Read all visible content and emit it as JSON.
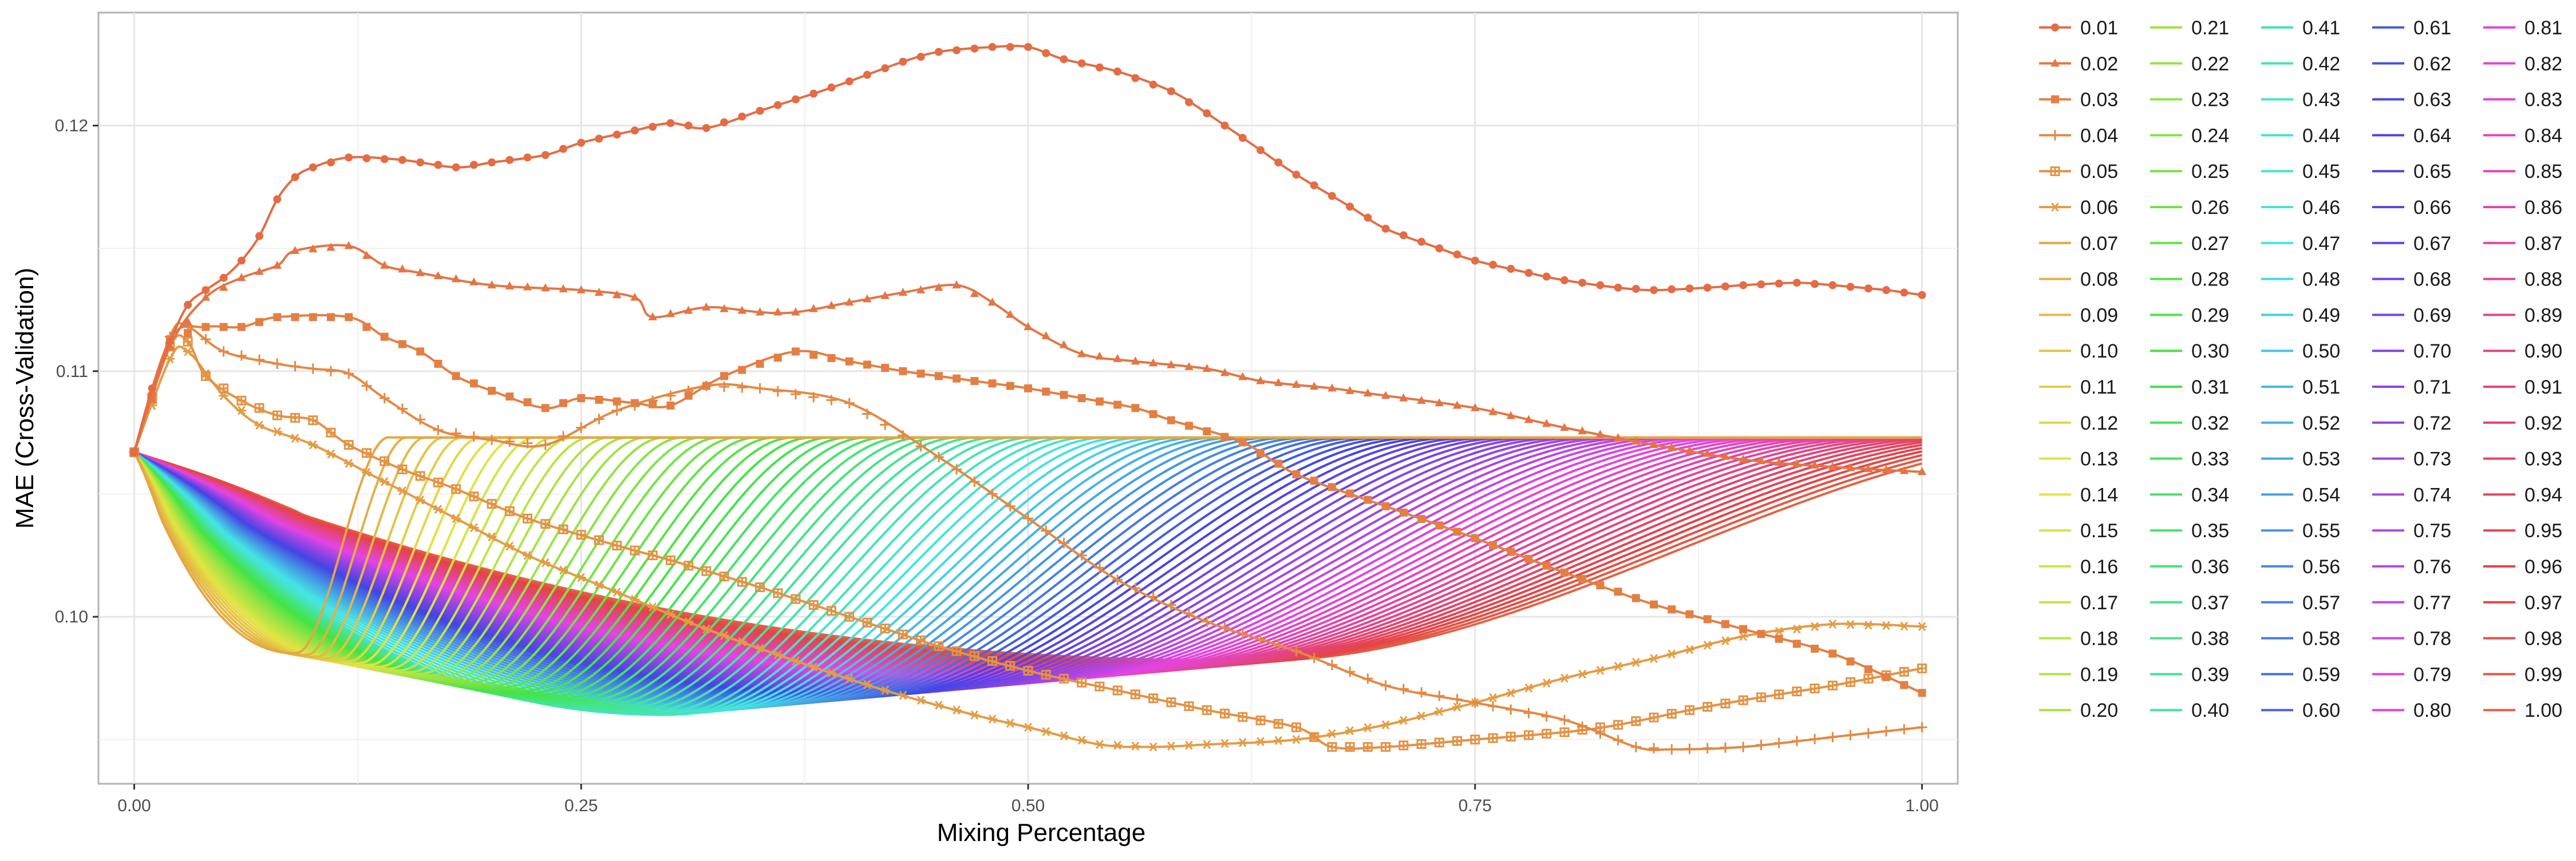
{
  "chart_data": {
    "type": "line",
    "title": "",
    "xlabel": "Mixing Percentage",
    "ylabel": "MAE (Cross-Validation)",
    "xlim": [
      -0.02,
      1.02
    ],
    "ylim": [
      0.0932,
      0.1246
    ],
    "x_ticks": [
      0.0,
      0.25,
      0.5,
      0.75,
      1.0
    ],
    "x_tick_labels": [
      "0.00",
      "0.25",
      "0.50",
      "0.75",
      "1.00"
    ],
    "y_ticks": [
      0.1,
      0.11,
      0.12
    ],
    "y_tick_labels": [
      "0.10",
      "0.11",
      "0.12"
    ],
    "grid": true,
    "legend": "right",
    "legend_entries": [
      "0.01",
      "0.02",
      "0.03",
      "0.04",
      "0.05",
      "0.06",
      "0.07",
      "0.08",
      "0.09",
      "0.10",
      "0.11",
      "0.12",
      "0.13",
      "0.14",
      "0.15",
      "0.16",
      "0.17",
      "0.18",
      "0.19",
      "0.20",
      "0.21",
      "0.22",
      "0.23",
      "0.24",
      "0.25",
      "0.26",
      "0.27",
      "0.28",
      "0.29",
      "0.30",
      "0.31",
      "0.32",
      "0.33",
      "0.34",
      "0.35",
      "0.36",
      "0.37",
      "0.38",
      "0.39",
      "0.40",
      "0.41",
      "0.42",
      "0.43",
      "0.44",
      "0.45",
      "0.46",
      "0.47",
      "0.48",
      "0.49",
      "0.50",
      "0.51",
      "0.52",
      "0.53",
      "0.54",
      "0.55",
      "0.56",
      "0.57",
      "0.58",
      "0.59",
      "0.60",
      "0.61",
      "0.62",
      "0.63",
      "0.64",
      "0.65",
      "0.66",
      "0.67",
      "0.68",
      "0.69",
      "0.70",
      "0.71",
      "0.72",
      "0.73",
      "0.74",
      "0.75",
      "0.76",
      "0.77",
      "0.78",
      "0.79",
      "0.80",
      "0.81",
      "0.82",
      "0.83",
      "0.84",
      "0.85",
      "0.86",
      "0.87",
      "0.88",
      "0.89",
      "0.90",
      "0.91",
      "0.92",
      "0.93",
      "0.94",
      "0.95",
      "0.96",
      "0.97",
      "0.98",
      "0.99",
      "1.00"
    ],
    "marker_series": [
      {
        "name": "0.01",
        "marker": "circle",
        "points": [
          [
            0.0,
            0.1067
          ],
          [
            0.01,
            0.1093
          ],
          [
            0.02,
            0.1112
          ],
          [
            0.03,
            0.1127
          ],
          [
            0.04,
            0.1133
          ],
          [
            0.05,
            0.1138
          ],
          [
            0.06,
            0.1145
          ],
          [
            0.07,
            0.1155
          ],
          [
            0.08,
            0.117
          ],
          [
            0.09,
            0.1179
          ],
          [
            0.1,
            0.1183
          ],
          [
            0.12,
            0.1187
          ],
          [
            0.15,
            0.1186
          ],
          [
            0.18,
            0.1183
          ],
          [
            0.2,
            0.1185
          ],
          [
            0.23,
            0.1188
          ],
          [
            0.25,
            0.1193
          ],
          [
            0.28,
            0.1198
          ],
          [
            0.3,
            0.1201
          ],
          [
            0.32,
            0.1199
          ],
          [
            0.35,
            0.1206
          ],
          [
            0.38,
            0.1213
          ],
          [
            0.4,
            0.1218
          ],
          [
            0.43,
            0.1226
          ],
          [
            0.45,
            0.123
          ],
          [
            0.48,
            0.1232
          ],
          [
            0.5,
            0.1232
          ],
          [
            0.52,
            0.1227
          ],
          [
            0.55,
            0.1222
          ],
          [
            0.58,
            0.1214
          ],
          [
            0.6,
            0.1205
          ],
          [
            0.63,
            0.119
          ],
          [
            0.65,
            0.118
          ],
          [
            0.68,
            0.1167
          ],
          [
            0.7,
            0.1158
          ],
          [
            0.73,
            0.115
          ],
          [
            0.75,
            0.1145
          ],
          [
            0.78,
            0.114
          ],
          [
            0.8,
            0.1137
          ],
          [
            0.83,
            0.1134
          ],
          [
            0.85,
            0.1133
          ],
          [
            0.88,
            0.1134
          ],
          [
            0.9,
            0.1135
          ],
          [
            0.93,
            0.1136
          ],
          [
            0.95,
            0.1135
          ],
          [
            0.98,
            0.1133
          ],
          [
            1.0,
            0.1131
          ]
        ]
      },
      {
        "name": "0.02",
        "marker": "triangle",
        "points": [
          [
            0.0,
            0.1067
          ],
          [
            0.02,
            0.111
          ],
          [
            0.04,
            0.113
          ],
          [
            0.06,
            0.1138
          ],
          [
            0.08,
            0.1143
          ],
          [
            0.09,
            0.1149
          ],
          [
            0.12,
            0.1151
          ],
          [
            0.14,
            0.1143
          ],
          [
            0.16,
            0.114
          ],
          [
            0.2,
            0.1135
          ],
          [
            0.25,
            0.1133
          ],
          [
            0.28,
            0.113
          ],
          [
            0.29,
            0.1122
          ],
          [
            0.32,
            0.1126
          ],
          [
            0.35,
            0.1124
          ],
          [
            0.37,
            0.1124
          ],
          [
            0.4,
            0.1128
          ],
          [
            0.43,
            0.1132
          ],
          [
            0.46,
            0.1135
          ],
          [
            0.48,
            0.1128
          ],
          [
            0.5,
            0.1118
          ],
          [
            0.53,
            0.1107
          ],
          [
            0.56,
            0.1104
          ],
          [
            0.6,
            0.1101
          ],
          [
            0.63,
            0.1096
          ],
          [
            0.67,
            0.1093
          ],
          [
            0.7,
            0.109
          ],
          [
            0.75,
            0.1085
          ],
          [
            0.8,
            0.1077
          ],
          [
            0.85,
            0.107
          ],
          [
            0.9,
            0.1064
          ],
          [
            0.95,
            0.1061
          ],
          [
            1.0,
            0.1059
          ]
        ]
      },
      {
        "name": "0.03",
        "marker": "square",
        "points": [
          [
            0.0,
            0.1067
          ],
          [
            0.02,
            0.1113
          ],
          [
            0.04,
            0.1118
          ],
          [
            0.06,
            0.1118
          ],
          [
            0.08,
            0.1122
          ],
          [
            0.12,
            0.1122
          ],
          [
            0.14,
            0.1114
          ],
          [
            0.16,
            0.1108
          ],
          [
            0.18,
            0.1098
          ],
          [
            0.2,
            0.1092
          ],
          [
            0.23,
            0.1085
          ],
          [
            0.25,
            0.1089
          ],
          [
            0.28,
            0.1087
          ],
          [
            0.3,
            0.1086
          ],
          [
            0.33,
            0.1098
          ],
          [
            0.37,
            0.1108
          ],
          [
            0.4,
            0.1104
          ],
          [
            0.43,
            0.11
          ],
          [
            0.45,
            0.1098
          ],
          [
            0.48,
            0.1095
          ],
          [
            0.5,
            0.1093
          ],
          [
            0.53,
            0.1089
          ],
          [
            0.56,
            0.1085
          ],
          [
            0.58,
            0.108
          ],
          [
            0.62,
            0.1071
          ],
          [
            0.65,
            0.1058
          ],
          [
            0.7,
            0.1045
          ],
          [
            0.75,
            0.1032
          ],
          [
            0.8,
            0.1018
          ],
          [
            0.85,
            0.1005
          ],
          [
            0.9,
            0.0995
          ],
          [
            0.95,
            0.0985
          ],
          [
            1.0,
            0.0969
          ]
        ]
      },
      {
        "name": "0.04",
        "marker": "plus",
        "points": [
          [
            0.0,
            0.1067
          ],
          [
            0.02,
            0.1114
          ],
          [
            0.03,
            0.1118
          ],
          [
            0.05,
            0.1108
          ],
          [
            0.08,
            0.1103
          ],
          [
            0.1,
            0.1101
          ],
          [
            0.12,
            0.1099
          ],
          [
            0.14,
            0.1089
          ],
          [
            0.17,
            0.1076
          ],
          [
            0.2,
            0.1072
          ],
          [
            0.23,
            0.107
          ],
          [
            0.27,
            0.1084
          ],
          [
            0.32,
            0.1094
          ],
          [
            0.35,
            0.1093
          ],
          [
            0.4,
            0.1087
          ],
          [
            0.45,
            0.1065
          ],
          [
            0.5,
            0.104
          ],
          [
            0.55,
            0.1015
          ],
          [
            0.6,
            0.0998
          ],
          [
            0.65,
            0.0986
          ],
          [
            0.7,
            0.0972
          ],
          [
            0.75,
            0.0965
          ],
          [
            0.8,
            0.0958
          ],
          [
            0.84,
            0.0947
          ],
          [
            0.86,
            0.0946
          ],
          [
            0.9,
            0.0947
          ],
          [
            0.95,
            0.0951
          ],
          [
            1.0,
            0.0955
          ]
        ]
      },
      {
        "name": "0.05",
        "marker": "square-cross",
        "points": [
          [
            0.0,
            0.1067
          ],
          [
            0.02,
            0.111
          ],
          [
            0.03,
            0.1112
          ],
          [
            0.04,
            0.1098
          ],
          [
            0.06,
            0.1088
          ],
          [
            0.08,
            0.1082
          ],
          [
            0.1,
            0.108
          ],
          [
            0.12,
            0.107
          ],
          [
            0.15,
            0.106
          ],
          [
            0.18,
            0.1052
          ],
          [
            0.22,
            0.104
          ],
          [
            0.27,
            0.1029
          ],
          [
            0.3,
            0.1023
          ],
          [
            0.35,
            0.1012
          ],
          [
            0.4,
            0.1
          ],
          [
            0.45,
            0.0988
          ],
          [
            0.5,
            0.0978
          ],
          [
            0.55,
            0.097
          ],
          [
            0.6,
            0.0962
          ],
          [
            0.65,
            0.0955
          ],
          [
            0.67,
            0.0947
          ],
          [
            0.7,
            0.0947
          ],
          [
            0.75,
            0.095
          ],
          [
            0.8,
            0.0953
          ],
          [
            0.83,
            0.0956
          ],
          [
            0.87,
            0.0962
          ],
          [
            0.9,
            0.0966
          ],
          [
            0.95,
            0.0972
          ],
          [
            1.0,
            0.0979
          ]
        ]
      },
      {
        "name": "0.06",
        "marker": "asterisk",
        "points": [
          [
            0.0,
            0.1067
          ],
          [
            0.02,
            0.1105
          ],
          [
            0.03,
            0.1108
          ],
          [
            0.05,
            0.109
          ],
          [
            0.07,
            0.1078
          ],
          [
            0.1,
            0.107
          ],
          [
            0.14,
            0.1055
          ],
          [
            0.18,
            0.104
          ],
          [
            0.22,
            0.1025
          ],
          [
            0.27,
            0.101
          ],
          [
            0.32,
            0.0995
          ],
          [
            0.37,
            0.0982
          ],
          [
            0.42,
            0.097
          ],
          [
            0.47,
            0.096
          ],
          [
            0.5,
            0.0955
          ],
          [
            0.54,
            0.0948
          ],
          [
            0.57,
            0.0947
          ],
          [
            0.6,
            0.0948
          ],
          [
            0.65,
            0.095
          ],
          [
            0.7,
            0.0956
          ],
          [
            0.75,
            0.0965
          ],
          [
            0.8,
            0.0975
          ],
          [
            0.85,
            0.0983
          ],
          [
            0.9,
            0.0992
          ],
          [
            0.95,
            0.0997
          ],
          [
            1.0,
            0.0996
          ]
        ]
      }
    ],
    "plain_series_pattern": {
      "names": "0.07 to 1.00 in steps of 0.01",
      "start": [
        0.0,
        0.1067
      ],
      "plateau": 0.1073,
      "dip_position": "x = 0.05 + 0.58 × mixing proportion, capped at 0.97",
      "dip_low_near_start": 0.099,
      "dip_low_deepest": 0.096,
      "x_range": [
        0.0,
        1.0
      ]
    }
  }
}
